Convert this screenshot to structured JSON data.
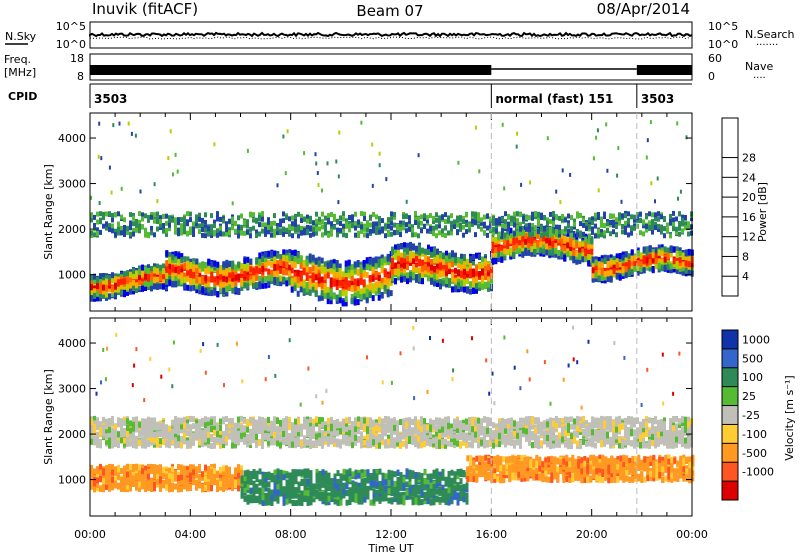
{
  "header": {
    "station": "Inuvik (fitACF)",
    "beam": "Beam 07",
    "date": "08/Apr/2014"
  },
  "sky_panel": {
    "left_label": "N.Sky",
    "left_ticks": [
      "10^5",
      "10^0"
    ],
    "right_ticks": [
      "10^5",
      "10^0"
    ],
    "right_label": "N.Search",
    "right_marker": "·······"
  },
  "freq_panel": {
    "left_label_line1": "Freq.",
    "left_label_line2": "[MHz]",
    "left_ticks": [
      "18",
      "8"
    ],
    "right_ticks": [
      "60",
      "0"
    ],
    "right_label": "Nave",
    "right_marker": "····"
  },
  "cpid_panel": {
    "label": "CPID",
    "segments": [
      {
        "start": 0,
        "end": 16,
        "label": "3503"
      },
      {
        "start": 16,
        "end": 21.8,
        "label": "normal (fast) 151"
      },
      {
        "start": 21.8,
        "end": 24,
        "label": "3503"
      }
    ]
  },
  "chart_data": [
    {
      "type": "heatmap",
      "name": "power",
      "ylabel": "Slant Range [km]",
      "ylim": [
        200,
        4550
      ],
      "y_ticks": [
        1000,
        2000,
        3000,
        4000
      ],
      "xlim": [
        0,
        24
      ],
      "colorbar": {
        "label": "Power [dB]",
        "ticks": [
          "4",
          "8",
          "12",
          "16",
          "20",
          "24",
          "28"
        ],
        "colors": [
          "#0000ee",
          "#2244aa",
          "#2e8b57",
          "#55bb33",
          "#bbcc00",
          "#ffaa00",
          "#ff6600",
          "#ff2200",
          "#e00000"
        ]
      },
      "bands": [
        {
          "t_start": 0,
          "t_end": 3,
          "center_km": 900,
          "width_km": 500
        },
        {
          "t_start": 3,
          "t_end": 8,
          "center_km": 1100,
          "width_km": 700
        },
        {
          "t_start": 8,
          "t_end": 12,
          "center_km": 1000,
          "width_km": 900
        },
        {
          "t_start": 12,
          "t_end": 16,
          "center_km": 1200,
          "width_km": 800
        },
        {
          "t_start": 16,
          "t_end": 20,
          "center_km": 1700,
          "width_km": 600
        },
        {
          "t_start": 20,
          "t_end": 24,
          "center_km": 1300,
          "width_km": 500
        }
      ]
    },
    {
      "type": "heatmap",
      "name": "velocity",
      "xlabel": "Time UT",
      "ylabel": "Slant Range [km]",
      "ylim": [
        200,
        4550
      ],
      "y_ticks": [
        1000,
        2000,
        3000,
        4000
      ],
      "xlim": [
        0,
        24
      ],
      "x_ticks": [
        "00:00",
        "04:00",
        "08:00",
        "12:00",
        "16:00",
        "20:00",
        "00:00"
      ],
      "colorbar": {
        "label": "Velocity [m s⁻¹]",
        "ticks": [
          "1000",
          "500",
          "100",
          "25",
          "-25",
          "-100",
          "-500",
          "-1000"
        ],
        "colors": [
          "#1133aa",
          "#3366cc",
          "#2e8b57",
          "#55bb33",
          "#c0c0b8",
          "#ffcc33",
          "#ff9922",
          "#ff5522",
          "#dd0000"
        ]
      },
      "bands": [
        {
          "t_start": 0,
          "t_end": 6,
          "center_km": 1100,
          "width_km": 500,
          "velocity": -100
        },
        {
          "t_start": 6,
          "t_end": 15,
          "center_km": 900,
          "width_km": 700,
          "velocity": 100
        },
        {
          "t_start": 15,
          "t_end": 24,
          "center_km": 1300,
          "width_km": 500,
          "velocity": -100
        },
        {
          "t_start": 0,
          "t_end": 24,
          "center_km": 2100,
          "width_km": 600,
          "velocity": 0
        }
      ]
    }
  ],
  "dashed_markers_hours": [
    16,
    21.8
  ]
}
